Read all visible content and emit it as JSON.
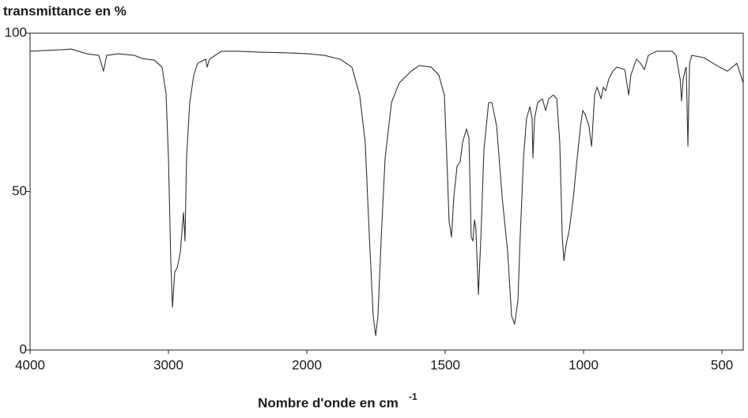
{
  "chart_data": {
    "type": "line",
    "title": "transmittance en %",
    "xlabel": "Nombre d'onde en cm",
    "xlabel_superscript": "-1",
    "xlim": [
      4000,
      423
    ],
    "xticks": [
      4000,
      3000,
      2000,
      1500,
      1000,
      500
    ],
    "xscale_break": 2000,
    "ylim": [
      0,
      100
    ],
    "yticks": [
      0,
      50,
      100
    ],
    "grid": false,
    "series": [
      {
        "color": "#333333",
        "x": [
          4000,
          3760,
          3703,
          3589,
          3503,
          3469,
          3446,
          3360,
          3246,
          3189,
          3103,
          3046,
          3017,
          3000,
          2983,
          2971,
          2954,
          2937,
          2914,
          2891,
          2880,
          2869,
          2846,
          2817,
          2789,
          2731,
          2720,
          2703,
          2617,
          2503,
          2331,
          2160,
          1994,
          1937,
          1880,
          1837,
          1809,
          1789,
          1774,
          1760,
          1751,
          1743,
          1731,
          1717,
          1694,
          1666,
          1623,
          1594,
          1551,
          1523,
          1503,
          1494,
          1486,
          1477,
          1469,
          1457,
          1446,
          1437,
          1423,
          1414,
          1406,
          1400,
          1394,
          1389,
          1380,
          1371,
          1360,
          1343,
          1331,
          1314,
          1294,
          1274,
          1260,
          1249,
          1237,
          1229,
          1217,
          1206,
          1194,
          1186,
          1183,
          1177,
          1166,
          1149,
          1137,
          1126,
          1109,
          1097,
          1086,
          1077,
          1071,
          1063,
          1051,
          1037,
          1023,
          1011,
          1003,
          994,
          980,
          977,
          971,
          966,
          960,
          951,
          937,
          929,
          920,
          909,
          894,
          880,
          851,
          837,
          829,
          809,
          794,
          780,
          766,
          737,
          680,
          666,
          651,
          646,
          640,
          634,
          629,
          623,
          617,
          609,
          566,
          509,
          480,
          446,
          423
        ],
        "values": [
          94.3,
          94.8,
          95.0,
          93.5,
          93.0,
          88.0,
          93.0,
          93.5,
          93.0,
          92.0,
          91.5,
          89.3,
          80.8,
          60.8,
          28.4,
          13.5,
          24.7,
          25.9,
          30.9,
          43.4,
          34.4,
          60.8,
          78.1,
          86.8,
          90.5,
          91.8,
          89.3,
          91.8,
          94.3,
          94.3,
          94.0,
          93.8,
          93.5,
          93.0,
          91.8,
          89.3,
          80.5,
          65.6,
          35.7,
          10.7,
          4.5,
          10.7,
          35.7,
          60.6,
          78.1,
          84.3,
          88.0,
          89.8,
          89.3,
          86.8,
          80.5,
          60.6,
          40.6,
          35.7,
          48.1,
          58.1,
          59.4,
          65.6,
          69.8,
          66.8,
          35.7,
          34.4,
          41.1,
          38.2,
          17.5,
          35.7,
          63.1,
          78.1,
          78.1,
          70.6,
          48.1,
          30.7,
          10.7,
          8.2,
          15.7,
          35.7,
          60.6,
          73.1,
          76.8,
          73.1,
          60.6,
          73.1,
          78.1,
          79.3,
          75.6,
          79.3,
          80.5,
          79.3,
          65.6,
          35.7,
          28.2,
          33.2,
          38.2,
          48.1,
          60.6,
          70.6,
          75.6,
          74.3,
          70.6,
          68.1,
          64.3,
          71.8,
          80.5,
          83.0,
          79.3,
          83.0,
          81.8,
          85.5,
          88.0,
          89.3,
          88.5,
          80.5,
          86.8,
          91.8,
          90.5,
          88.5,
          93.0,
          94.3,
          94.3,
          93.0,
          85.5,
          78.6,
          85.5,
          88.0,
          89.3,
          64.3,
          90.5,
          93.0,
          92.3,
          89.3,
          88.0,
          90.5,
          84.3
        ]
      }
    ]
  }
}
